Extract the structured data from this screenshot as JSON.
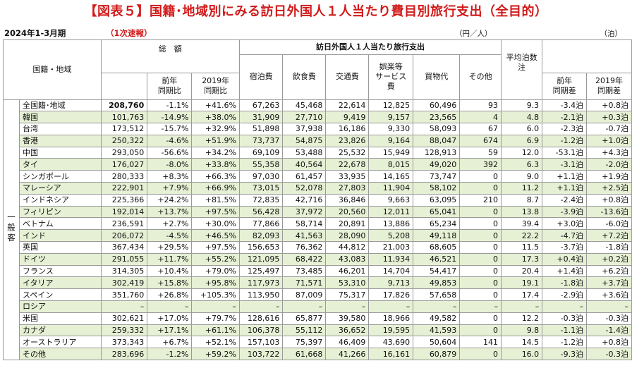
{
  "title": "【図表５】国籍･地域別にみる訪日外国人１人当たり費目別旅行支出（全目的）",
  "period": "2024年1-3月期",
  "preliminary": "（1次速報）",
  "unit_yen": "（円／人）",
  "unit_nights": "（泊）",
  "headers": {
    "country": "国籍・地域",
    "total": "総　額",
    "total_yoy": "前年\n同期比",
    "total_2019": "2019年\n同期比",
    "per_capita": "訪日外国人１人当たり旅行支出",
    "lodging": "宿泊費",
    "food": "飲食費",
    "transport": "交通費",
    "entertainment": "娯楽等\nサービス費",
    "shopping": "買物代",
    "other": "その他",
    "avg_nights": "平均泊数\n注",
    "nights_yoy": "前年\n同期差",
    "nights_2019": "2019年\n同期差"
  },
  "segment_label": "一般客",
  "rows": [
    {
      "name": "全国籍･地域",
      "total": "208,760",
      "yoy": "-1.1%",
      "vs2019": "+41.6%",
      "lodging": "67,263",
      "food": "45,468",
      "transport": "22,614",
      "entertainment": "12,825",
      "shopping": "60,496",
      "other": "93",
      "nights": "9.3",
      "n_yoy": "-3.4泊",
      "n_2019": "+0.8泊"
    },
    {
      "name": "韓国",
      "total": "101,763",
      "yoy": "-14.9%",
      "vs2019": "+38.0%",
      "lodging": "31,909",
      "food": "27,710",
      "transport": "9,419",
      "entertainment": "9,157",
      "shopping": "23,565",
      "other": "4",
      "nights": "4.8",
      "n_yoy": "-2.1泊",
      "n_2019": "+0.3泊"
    },
    {
      "name": "台湾",
      "total": "173,512",
      "yoy": "-15.7%",
      "vs2019": "+32.9%",
      "lodging": "51,898",
      "food": "37,938",
      "transport": "16,186",
      "entertainment": "9,330",
      "shopping": "58,093",
      "other": "67",
      "nights": "6.0",
      "n_yoy": "-2.3泊",
      "n_2019": "-0.7泊"
    },
    {
      "name": "香港",
      "total": "250,322",
      "yoy": "-4.6%",
      "vs2019": "+51.9%",
      "lodging": "73,737",
      "food": "54,875",
      "transport": "23,826",
      "entertainment": "9,164",
      "shopping": "88,047",
      "other": "674",
      "nights": "6.9",
      "n_yoy": "-1.2泊",
      "n_2019": "+1.0泊"
    },
    {
      "name": "中国",
      "total": "293,050",
      "yoy": "-56.6%",
      "vs2019": "+34.2%",
      "lodging": "69,109",
      "food": "53,488",
      "transport": "25,532",
      "entertainment": "15,949",
      "shopping": "128,913",
      "other": "59",
      "nights": "12.0",
      "n_yoy": "-53.1泊",
      "n_2019": "+4.3泊"
    },
    {
      "name": "タイ",
      "total": "176,027",
      "yoy": "-8.0%",
      "vs2019": "+33.8%",
      "lodging": "55,358",
      "food": "40,564",
      "transport": "22,678",
      "entertainment": "8,015",
      "shopping": "49,020",
      "other": "392",
      "nights": "6.3",
      "n_yoy": "-3.1泊",
      "n_2019": "-2.0泊"
    },
    {
      "name": "シンガポール",
      "total": "280,333",
      "yoy": "+8.3%",
      "vs2019": "+66.3%",
      "lodging": "97,030",
      "food": "61,457",
      "transport": "33,935",
      "entertainment": "14,165",
      "shopping": "73,747",
      "other": "0",
      "nights": "9.0",
      "n_yoy": "+1.1泊",
      "n_2019": "+1.9泊"
    },
    {
      "name": "マレーシア",
      "total": "222,901",
      "yoy": "+7.9%",
      "vs2019": "+66.9%",
      "lodging": "73,015",
      "food": "52,078",
      "transport": "27,803",
      "entertainment": "11,904",
      "shopping": "58,102",
      "other": "0",
      "nights": "11.2",
      "n_yoy": "+1.1泊",
      "n_2019": "+2.5泊"
    },
    {
      "name": "インドネシア",
      "total": "225,366",
      "yoy": "+24.2%",
      "vs2019": "+81.5%",
      "lodging": "72,835",
      "food": "42,716",
      "transport": "36,846",
      "entertainment": "9,663",
      "shopping": "63,095",
      "other": "210",
      "nights": "8.7",
      "n_yoy": "-2.4泊",
      "n_2019": "+0.8泊"
    },
    {
      "name": "フィリピン",
      "total": "192,014",
      "yoy": "+13.7%",
      "vs2019": "+97.5%",
      "lodging": "56,428",
      "food": "37,972",
      "transport": "20,560",
      "entertainment": "12,011",
      "shopping": "65,041",
      "other": "0",
      "nights": "13.8",
      "n_yoy": "-3.9泊",
      "n_2019": "-13.6泊"
    },
    {
      "name": "ベトナム",
      "total": "236,591",
      "yoy": "+2.7%",
      "vs2019": "+30.0%",
      "lodging": "77,866",
      "food": "58,714",
      "transport": "20,891",
      "entertainment": "13,886",
      "shopping": "65,234",
      "other": "0",
      "nights": "39.4",
      "n_yoy": "+3.0泊",
      "n_2019": "-6.0泊"
    },
    {
      "name": "インド",
      "total": "206,072",
      "yoy": "-4.5%",
      "vs2019": "+46.5%",
      "lodging": "82,093",
      "food": "41,563",
      "transport": "28,090",
      "entertainment": "5,208",
      "shopping": "49,118",
      "other": "0",
      "nights": "22.2",
      "n_yoy": "-4.7泊",
      "n_2019": "+7.2泊"
    },
    {
      "name": "英国",
      "total": "367,434",
      "yoy": "+29.5%",
      "vs2019": "+97.5%",
      "lodging": "156,653",
      "food": "76,362",
      "transport": "44,812",
      "entertainment": "21,003",
      "shopping": "68,605",
      "other": "0",
      "nights": "11.5",
      "n_yoy": "-3.7泊",
      "n_2019": "-1.8泊"
    },
    {
      "name": "ドイツ",
      "total": "291,055",
      "yoy": "+11.7%",
      "vs2019": "+55.2%",
      "lodging": "121,095",
      "food": "68,422",
      "transport": "43,083",
      "entertainment": "11,934",
      "shopping": "46,521",
      "other": "0",
      "nights": "17.3",
      "n_yoy": "+0.4泊",
      "n_2019": "+0.2泊"
    },
    {
      "name": "フランス",
      "total": "314,305",
      "yoy": "+10.4%",
      "vs2019": "+79.0%",
      "lodging": "125,497",
      "food": "73,485",
      "transport": "46,201",
      "entertainment": "14,704",
      "shopping": "54,417",
      "other": "0",
      "nights": "20.4",
      "n_yoy": "+1.4泊",
      "n_2019": "+6.2泊"
    },
    {
      "name": "イタリア",
      "total": "302,419",
      "yoy": "+15.8%",
      "vs2019": "+95.8%",
      "lodging": "117,973",
      "food": "71,571",
      "transport": "53,310",
      "entertainment": "9,713",
      "shopping": "49,853",
      "other": "0",
      "nights": "19.1",
      "n_yoy": "-1.8泊",
      "n_2019": "+3.7泊"
    },
    {
      "name": "スペイン",
      "total": "351,760",
      "yoy": "+26.8%",
      "vs2019": "+105.3%",
      "lodging": "113,950",
      "food": "87,009",
      "transport": "75,317",
      "entertainment": "17,826",
      "shopping": "57,658",
      "other": "0",
      "nights": "17.4",
      "n_yoy": "-2.9泊",
      "n_2019": "+3.6泊"
    },
    {
      "name": "ロシア",
      "total": "–",
      "yoy": "–",
      "vs2019": "–",
      "lodging": "–",
      "food": "–",
      "transport": "–",
      "entertainment": "–",
      "shopping": "–",
      "other": "–",
      "nights": "–",
      "n_yoy": "–",
      "n_2019": "–"
    },
    {
      "name": "米国",
      "total": "302,621",
      "yoy": "+17.0%",
      "vs2019": "+79.7%",
      "lodging": "128,616",
      "food": "65,877",
      "transport": "39,580",
      "entertainment": "18,966",
      "shopping": "49,582",
      "other": "0",
      "nights": "12.2",
      "n_yoy": "-0.3泊",
      "n_2019": "-0.3泊"
    },
    {
      "name": "カナダ",
      "total": "259,332",
      "yoy": "+17.1%",
      "vs2019": "+61.1%",
      "lodging": "106,378",
      "food": "55,112",
      "transport": "36,652",
      "entertainment": "19,595",
      "shopping": "41,593",
      "other": "0",
      "nights": "9.8",
      "n_yoy": "-1.1泊",
      "n_2019": "-1.4泊"
    },
    {
      "name": "オーストラリア",
      "total": "373,343",
      "yoy": "+6.7%",
      "vs2019": "+52.1%",
      "lodging": "157,103",
      "food": "75,397",
      "transport": "46,409",
      "entertainment": "43,690",
      "shopping": "50,604",
      "other": "141",
      "nights": "14.5",
      "n_yoy": "-1.2泊",
      "n_2019": "+0.8泊"
    },
    {
      "name": "その他",
      "total": "283,696",
      "yoy": "-1.2%",
      "vs2019": "+59.2%",
      "lodging": "103,722",
      "food": "61,668",
      "transport": "41,266",
      "entertainment": "16,161",
      "shopping": "60,879",
      "other": "0",
      "nights": "16.0",
      "n_yoy": "-9.3泊",
      "n_2019": "-0.3泊"
    }
  ]
}
